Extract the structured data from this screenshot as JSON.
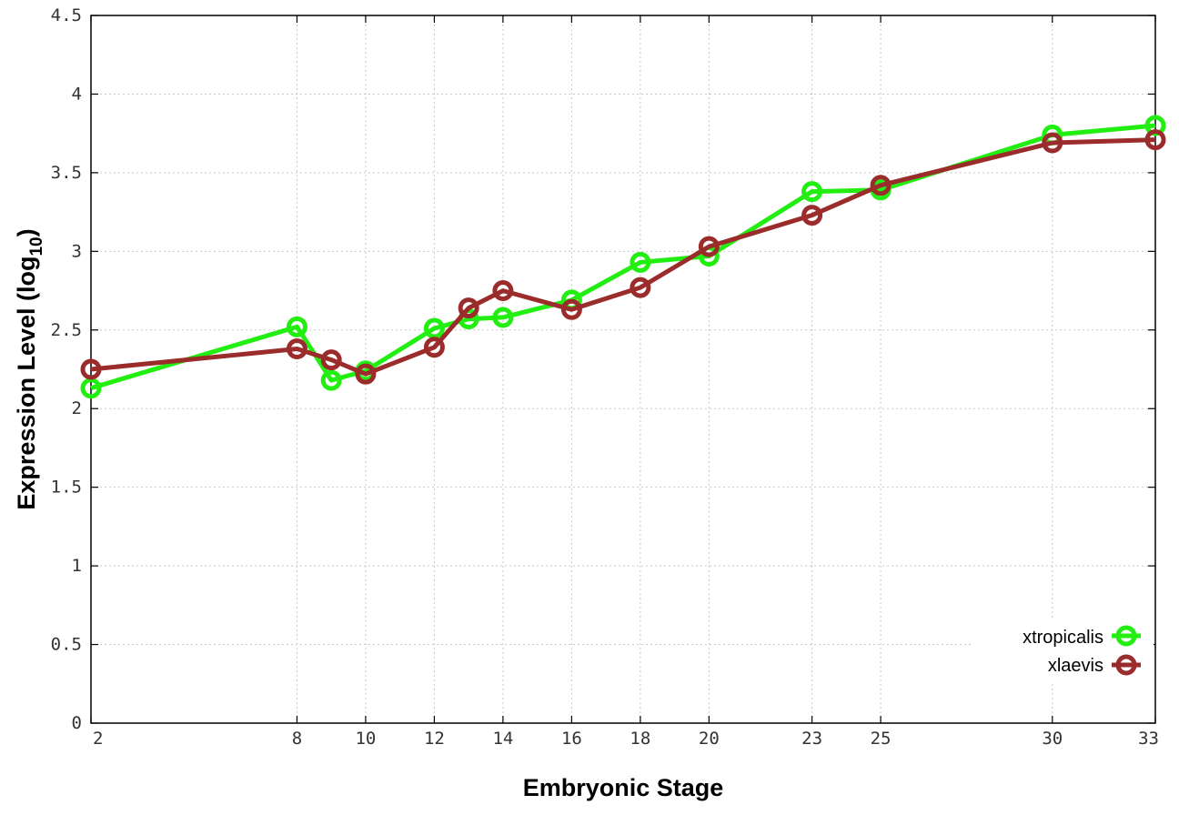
{
  "chart_data": {
    "type": "line",
    "title": "",
    "xlabel": "Embryonic Stage",
    "ylabel_main": "Expression Level (log",
    "ylabel_sub": "10",
    "ylabel_close": ")",
    "x": [
      2,
      8,
      9,
      10,
      12,
      13,
      14,
      16,
      18,
      20,
      23,
      25,
      30,
      33
    ],
    "x_tick_labels": [
      "2",
      "8",
      "10",
      "12",
      "14",
      "16",
      "18",
      "20",
      "23",
      "25",
      "30",
      "33"
    ],
    "x_tick_values": [
      2,
      8,
      10,
      12,
      14,
      16,
      18,
      20,
      23,
      25,
      30,
      33
    ],
    "xlim": [
      2,
      33
    ],
    "ylim": [
      0,
      4.5
    ],
    "y_ticks": [
      0,
      0.5,
      1,
      1.5,
      2,
      2.5,
      3,
      3.5,
      4,
      4.5
    ],
    "y_tick_labels": [
      "0",
      "0.5",
      "1",
      "1.5",
      "2",
      "2.5",
      "3",
      "3.5",
      "4",
      "4.5"
    ],
    "grid": true,
    "legend_position": "bottom-right",
    "series": [
      {
        "name": "xtropicalis",
        "color": "#22ee11",
        "values": [
          2.13,
          2.52,
          2.18,
          2.24,
          2.51,
          2.57,
          2.58,
          2.69,
          2.93,
          2.97,
          3.38,
          3.39,
          3.74,
          3.8
        ]
      },
      {
        "name": "xlaevis",
        "color": "#9b2c2c",
        "values": [
          2.25,
          2.38,
          2.31,
          2.22,
          2.39,
          2.64,
          2.75,
          2.63,
          2.77,
          3.03,
          3.23,
          3.42,
          3.69,
          3.71
        ]
      }
    ]
  }
}
